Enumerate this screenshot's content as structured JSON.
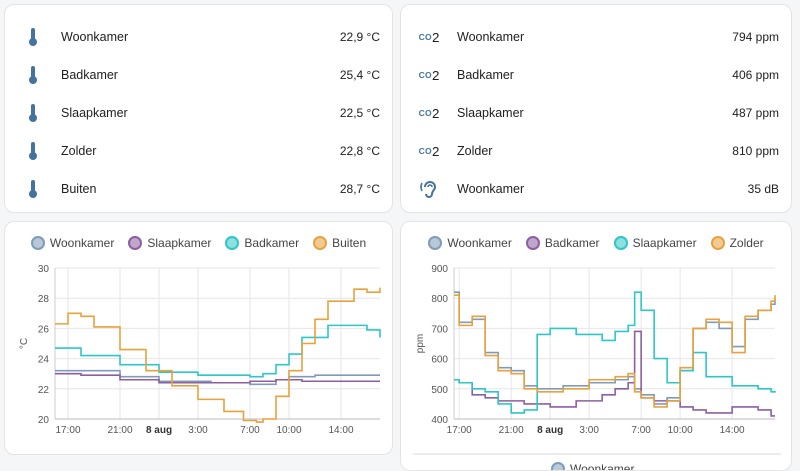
{
  "temperature_card": {
    "rows": [
      {
        "name": "Woonkamer",
        "value": "22,9 °C",
        "icon": "thermometer-icon"
      },
      {
        "name": "Badkamer",
        "value": "25,4 °C",
        "icon": "thermometer-icon"
      },
      {
        "name": "Slaapkamer",
        "value": "22,5 °C",
        "icon": "thermometer-icon"
      },
      {
        "name": "Zolder",
        "value": "22,8 °C",
        "icon": "thermometer-icon"
      },
      {
        "name": "Buiten",
        "value": "28,7 °C",
        "icon": "thermometer-icon"
      }
    ]
  },
  "air_card": {
    "co2_icon_text": "CO",
    "co2_icon_sub": "2",
    "rows": [
      {
        "name": "Woonkamer",
        "value": "794 ppm",
        "icon": "co2-icon"
      },
      {
        "name": "Badkamer",
        "value": "406 ppm",
        "icon": "co2-icon"
      },
      {
        "name": "Slaapkamer",
        "value": "487 ppm",
        "icon": "co2-icon"
      },
      {
        "name": "Zolder",
        "value": "810 ppm",
        "icon": "co2-icon"
      },
      {
        "name": "Woonkamer",
        "value": "35 dB",
        "icon": "ear-hearing-icon"
      }
    ]
  },
  "colors": {
    "icon": "#44739e",
    "blue": "#7f9bb8",
    "purple": "#8e5ea2",
    "cyan": "#2ec6c6",
    "orange": "#e8a13c",
    "grid": "#e6e6e6"
  },
  "chart_data": [
    {
      "type": "line",
      "ylabel": "°C",
      "ylim": [
        20,
        30
      ],
      "yticks": [
        "20",
        "22",
        "24",
        "26",
        "28",
        "30"
      ],
      "xlim": [
        16,
        41
      ],
      "xticks": [
        {
          "x": 17,
          "label": "17:00"
        },
        {
          "x": 21,
          "label": "21:00"
        },
        {
          "x": 24,
          "label": "8 aug"
        },
        {
          "x": 27,
          "label": "3:00"
        },
        {
          "x": 31,
          "label": "7:00"
        },
        {
          "x": 34,
          "label": "10:00"
        },
        {
          "x": 38,
          "label": "14:00"
        }
      ],
      "legend": "top",
      "grid": true,
      "series": [
        {
          "name": "Woonkamer",
          "color": "#7f9bb8",
          "x": [
            16,
            18,
            21,
            24,
            28,
            31,
            33,
            34,
            36,
            41
          ],
          "y": [
            23.2,
            23.2,
            22.8,
            22.5,
            22.4,
            22.3,
            22.6,
            22.8,
            22.9,
            22.9
          ]
        },
        {
          "name": "Slaapkamer",
          "color": "#8e5ea2",
          "x": [
            16,
            18,
            21,
            24,
            28,
            31,
            33,
            35,
            41
          ],
          "y": [
            23.0,
            22.9,
            22.6,
            22.4,
            22.4,
            22.5,
            22.6,
            22.5,
            22.5
          ]
        },
        {
          "name": "Badkamer",
          "color": "#2ec6c6",
          "x": [
            16,
            18,
            21,
            24,
            27,
            31,
            32,
            33,
            34,
            35,
            37,
            40,
            41
          ],
          "y": [
            24.7,
            24.2,
            23.6,
            23.1,
            22.9,
            22.8,
            23.0,
            23.6,
            24.3,
            25.4,
            26.2,
            25.9,
            25.4
          ]
        },
        {
          "name": "Buiten",
          "color": "#e8a13c",
          "x": [
            16,
            17,
            18,
            19,
            21,
            23,
            25,
            27,
            29,
            30.5,
            31.5,
            32,
            33,
            34,
            35,
            36,
            37,
            39,
            40,
            41
          ],
          "y": [
            26.3,
            27.0,
            26.8,
            26.1,
            24.6,
            23.2,
            22.2,
            21.3,
            20.5,
            19.9,
            19.8,
            20.0,
            21.5,
            23.2,
            25.0,
            26.6,
            27.8,
            28.6,
            28.4,
            28.7
          ]
        }
      ]
    },
    {
      "type": "line",
      "ylabel": "ppm",
      "ylim": [
        400,
        900
      ],
      "yticks": [
        "400",
        "500",
        "600",
        "700",
        "800",
        "900"
      ],
      "xlim": [
        16.6,
        41.3
      ],
      "xticks": [
        {
          "x": 17,
          "label": "17:00"
        },
        {
          "x": 21,
          "label": "21:00"
        },
        {
          "x": 24,
          "label": "8 aug"
        },
        {
          "x": 27,
          "label": "3:00"
        },
        {
          "x": 31,
          "label": "7:00"
        },
        {
          "x": 34,
          "label": "10:00"
        },
        {
          "x": 38,
          "label": "14:00"
        }
      ],
      "legend": "top",
      "grid": true,
      "series": [
        {
          "name": "Woonkamer",
          "color": "#7f9bb8",
          "x": [
            16.6,
            17,
            18,
            19,
            20,
            21,
            22,
            23,
            25,
            27,
            29,
            30,
            30.5,
            31,
            32,
            33,
            34,
            35,
            36,
            37,
            38,
            39,
            40,
            41,
            41.3
          ],
          "y": [
            820,
            720,
            730,
            620,
            570,
            560,
            510,
            500,
            510,
            520,
            530,
            540,
            500,
            480,
            450,
            470,
            560,
            700,
            720,
            700,
            640,
            730,
            760,
            780,
            800
          ]
        },
        {
          "name": "Badkamer",
          "color": "#8e5ea2",
          "x": [
            16.6,
            17,
            18,
            19,
            20,
            22,
            24,
            26,
            28,
            29,
            30,
            30.5,
            31,
            32,
            34,
            35,
            36,
            38,
            40,
            41,
            41.3
          ],
          "y": [
            530,
            520,
            480,
            470,
            460,
            450,
            440,
            460,
            480,
            500,
            520,
            690,
            470,
            460,
            440,
            430,
            420,
            440,
            430,
            410,
            410
          ]
        },
        {
          "name": "Slaapkamer",
          "color": "#2ec6c6",
          "x": [
            16.6,
            17,
            18,
            19,
            20,
            21,
            22,
            23,
            24,
            26,
            28,
            29,
            30,
            30.5,
            31,
            32,
            33,
            34,
            35,
            36,
            38,
            40,
            41,
            41.3
          ],
          "y": [
            530,
            520,
            500,
            490,
            450,
            420,
            430,
            680,
            700,
            680,
            660,
            690,
            710,
            820,
            760,
            600,
            520,
            560,
            620,
            540,
            510,
            500,
            490,
            487
          ]
        },
        {
          "name": "Zolder",
          "color": "#e8a13c",
          "x": [
            16.6,
            17,
            18,
            19,
            20,
            21,
            22,
            23,
            25,
            27,
            29,
            30,
            30.5,
            31,
            32,
            33,
            34,
            35,
            36,
            37,
            38,
            39,
            40,
            41,
            41.3
          ],
          "y": [
            810,
            710,
            740,
            610,
            560,
            550,
            500,
            490,
            500,
            530,
            540,
            550,
            490,
            470,
            440,
            460,
            570,
            700,
            730,
            720,
            620,
            740,
            760,
            790,
            810
          ]
        }
      ]
    }
  ],
  "peek_legend": {
    "name": "Woonkamer"
  }
}
